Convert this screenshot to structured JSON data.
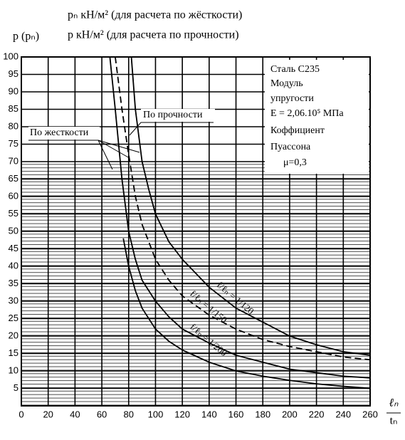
{
  "chart_data": {
    "type": "line",
    "header": [
      "pₙ  кН/м²  (для расчета по жёсткости)",
      "p    кН/м²  (для расчета по прочности)"
    ],
    "y_label": "p (pₙ)",
    "x_label": {
      "numerator": "ℓₙ",
      "denominator": "tₙ"
    },
    "xlim": [
      0,
      260
    ],
    "xticks": [
      0,
      20,
      40,
      60,
      80,
      100,
      120,
      140,
      160,
      180,
      200,
      220,
      240,
      260
    ],
    "ylim": [
      0,
      100
    ],
    "yticks": [
      5,
      10,
      15,
      20,
      25,
      30,
      35,
      40,
      45,
      50,
      55,
      60,
      65,
      70,
      75,
      80,
      85,
      90,
      95,
      100
    ],
    "grid": true,
    "series": [
      {
        "name": "f/ℓₙ = 1/120",
        "color": "#000000",
        "dash": false,
        "x": [
          82,
          85,
          90,
          95,
          100,
          110,
          120,
          140,
          160,
          180,
          200,
          220,
          240,
          260
        ],
        "values": [
          100,
          85,
          70,
          62,
          55,
          47,
          42,
          34,
          28,
          24,
          20,
          17.5,
          15.5,
          14.5
        ]
      },
      {
        "name": "f/ℓₙ = 1/150",
        "color": "#000000",
        "dash": true,
        "x": [
          70,
          75,
          80,
          85,
          90,
          100,
          110,
          120,
          140,
          160,
          180,
          200,
          220,
          240,
          260
        ],
        "values": [
          100,
          85,
          72,
          60,
          52,
          42,
          36,
          31.5,
          26,
          22,
          19,
          17,
          15.5,
          14,
          13.2
        ]
      },
      {
        "name": "f/ℓₙ = 1/200",
        "color": "#000000",
        "dash": false,
        "x": [
          66,
          70,
          75,
          80,
          85,
          90,
          100,
          110,
          120,
          140,
          160,
          180,
          200,
          220,
          240,
          260
        ],
        "values": [
          100,
          85,
          65,
          50,
          42,
          36,
          30,
          25.5,
          22,
          18,
          14.5,
          12.5,
          10.5,
          9.5,
          8.5,
          8
        ]
      },
      {
        "color": "#000000",
        "dash": false,
        "x": [
          76,
          80,
          85,
          90,
          100,
          110,
          120,
          140,
          160,
          180,
          200,
          220,
          240,
          260
        ],
        "values": [
          48,
          40,
          33,
          28,
          22,
          18.5,
          16,
          12.5,
          10,
          8.5,
          7.3,
          6.3,
          5.6,
          5
        ]
      }
    ],
    "annotations": {
      "strength": "По прочности",
      "stiffness": "По жесткости",
      "box": [
        "Сталь С235",
        "Модуль",
        "упругости",
        "E = 2,06.10⁵ МПа",
        "Коффициент",
        "Пуассона",
        "μ=0,3"
      ]
    }
  }
}
